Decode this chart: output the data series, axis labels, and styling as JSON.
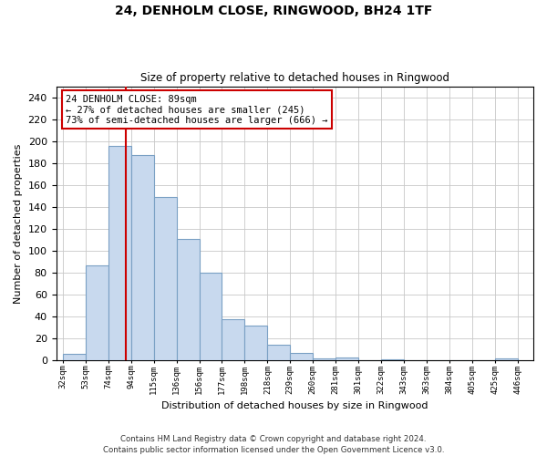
{
  "title": "24, DENHOLM CLOSE, RINGWOOD, BH24 1TF",
  "subtitle": "Size of property relative to detached houses in Ringwood",
  "xlabel": "Distribution of detached houses by size in Ringwood",
  "ylabel": "Number of detached properties",
  "bar_color": "#c8d9ee",
  "bar_edge_color": "#7aa0c4",
  "categories": [
    "32sqm",
    "53sqm",
    "74sqm",
    "94sqm",
    "115sqm",
    "136sqm",
    "156sqm",
    "177sqm",
    "198sqm",
    "218sqm",
    "239sqm",
    "260sqm",
    "281sqm",
    "301sqm",
    "322sqm",
    "343sqm",
    "363sqm",
    "384sqm",
    "405sqm",
    "425sqm",
    "446sqm"
  ],
  "values": [
    6,
    87,
    196,
    187,
    149,
    111,
    80,
    38,
    32,
    14,
    7,
    2,
    3,
    0,
    1,
    0,
    0,
    0,
    0,
    2
  ],
  "ylim": [
    0,
    250
  ],
  "yticks": [
    0,
    20,
    40,
    60,
    80,
    100,
    120,
    140,
    160,
    180,
    200,
    220,
    240
  ],
  "property_line_color": "#cc0000",
  "annotation_line1": "24 DENHOLM CLOSE: 89sqm",
  "annotation_line2": "← 27% of detached houses are smaller (245)",
  "annotation_line3": "73% of semi-detached houses are larger (666) →",
  "footer_line1": "Contains HM Land Registry data © Crown copyright and database right 2024.",
  "footer_line2": "Contains public sector information licensed under the Open Government Licence v3.0.",
  "bg_color": "#ffffff",
  "grid_color": "#c8c8c8",
  "bin_edges_sqm": [
    32,
    53,
    74,
    94,
    115,
    136,
    156,
    177,
    198,
    218,
    239,
    260,
    281,
    301,
    322,
    343,
    363,
    384,
    405,
    425,
    446
  ],
  "property_sqm": 89
}
